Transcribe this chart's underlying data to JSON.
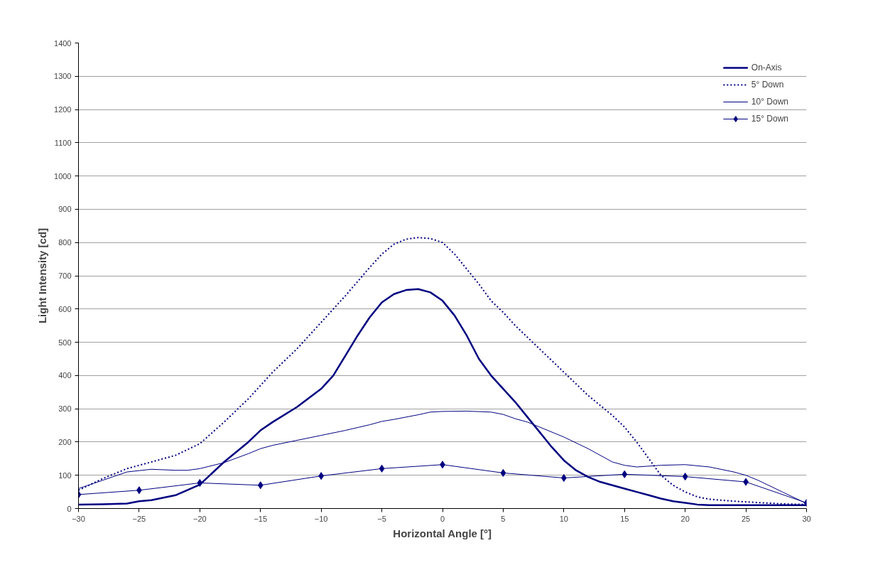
{
  "chart_data": {
    "type": "line",
    "xlabel": "Horizontal Angle [°]",
    "ylabel": "Light Intensity [cd]",
    "xlim": [
      -30,
      30
    ],
    "ylim": [
      0,
      1400
    ],
    "xticks": [
      -30,
      -25,
      -20,
      -15,
      -10,
      -5,
      0,
      5,
      10,
      15,
      20,
      25,
      30
    ],
    "yticks": [
      0,
      100,
      200,
      300,
      400,
      500,
      600,
      700,
      800,
      900,
      1000,
      1100,
      1200,
      1300,
      1400
    ],
    "grid": "y",
    "legend": "top right",
    "marker": "none",
    "series": [
      {
        "name": "On-Axis",
        "color": "#000080",
        "line_style": "solid",
        "x": [
          -30,
          -28,
          -26,
          -25,
          -24,
          -22,
          -20,
          -18,
          -16,
          -15,
          -14,
          -12,
          -10,
          -9,
          -8,
          -7,
          -6,
          -5,
          -4,
          -3,
          -2,
          -1,
          0,
          1,
          2,
          3,
          4,
          5,
          6,
          7,
          8,
          9,
          10,
          11,
          12,
          13,
          14,
          15,
          16,
          17,
          18,
          19,
          20,
          21,
          22,
          25,
          30
        ],
        "values": [
          12,
          13,
          15,
          22,
          25,
          40,
          72,
          140,
          200,
          235,
          260,
          305,
          360,
          400,
          460,
          520,
          575,
          620,
          645,
          657,
          660,
          650,
          625,
          580,
          520,
          450,
          400,
          360,
          320,
          275,
          230,
          185,
          145,
          115,
          95,
          80,
          70,
          60,
          50,
          40,
          30,
          22,
          17,
          12,
          10,
          10,
          10
        ]
      },
      {
        "name": "5° Down",
        "color": "#000080",
        "line_style": "dotted",
        "x": [
          -30,
          -28,
          -26,
          -24,
          -22,
          -20,
          -18,
          -16,
          -15,
          -14,
          -12,
          -10,
          -8,
          -6,
          -5,
          -4,
          -3,
          -2,
          -1,
          0,
          1,
          2,
          3,
          4,
          5,
          6,
          8,
          10,
          12,
          14,
          15,
          16,
          17,
          18,
          19,
          20,
          21,
          22,
          24,
          26,
          28,
          30
        ],
        "values": [
          55,
          90,
          120,
          140,
          160,
          195,
          260,
          330,
          370,
          410,
          480,
          560,
          640,
          725,
          765,
          795,
          810,
          815,
          812,
          800,
          765,
          720,
          675,
          625,
          590,
          550,
          480,
          410,
          340,
          280,
          245,
          200,
          150,
          100,
          70,
          50,
          35,
          28,
          22,
          18,
          14,
          12
        ]
      },
      {
        "name": "10° Down",
        "color": "#000080",
        "line_style": "solid",
        "x": [
          -30,
          -28,
          -26,
          -24,
          -22,
          -21,
          -20,
          -18,
          -16,
          -15,
          -14,
          -12,
          -10,
          -8,
          -6,
          -5,
          -4,
          -2,
          -1,
          0,
          2,
          4,
          5,
          6,
          7,
          8,
          10,
          12,
          14,
          15,
          16,
          18,
          20,
          22,
          24,
          25,
          26,
          28,
          30
        ],
        "values": [
          60,
          85,
          110,
          118,
          115,
          115,
          120,
          138,
          165,
          180,
          190,
          205,
          220,
          235,
          252,
          262,
          268,
          282,
          290,
          292,
          293,
          290,
          283,
          270,
          260,
          245,
          215,
          180,
          140,
          130,
          125,
          130,
          132,
          125,
          110,
          100,
          85,
          50,
          15
        ]
      },
      {
        "name": "15° Down",
        "color": "#000080",
        "line_style": "solid",
        "marker": "diamond",
        "x": [
          -30,
          -25,
          -20,
          -15,
          -10,
          -5,
          0,
          5,
          10,
          15,
          20,
          25,
          30
        ],
        "values": [
          42,
          55,
          77,
          70,
          98,
          120,
          132,
          107,
          92,
          103,
          96,
          80,
          17
        ]
      }
    ]
  }
}
